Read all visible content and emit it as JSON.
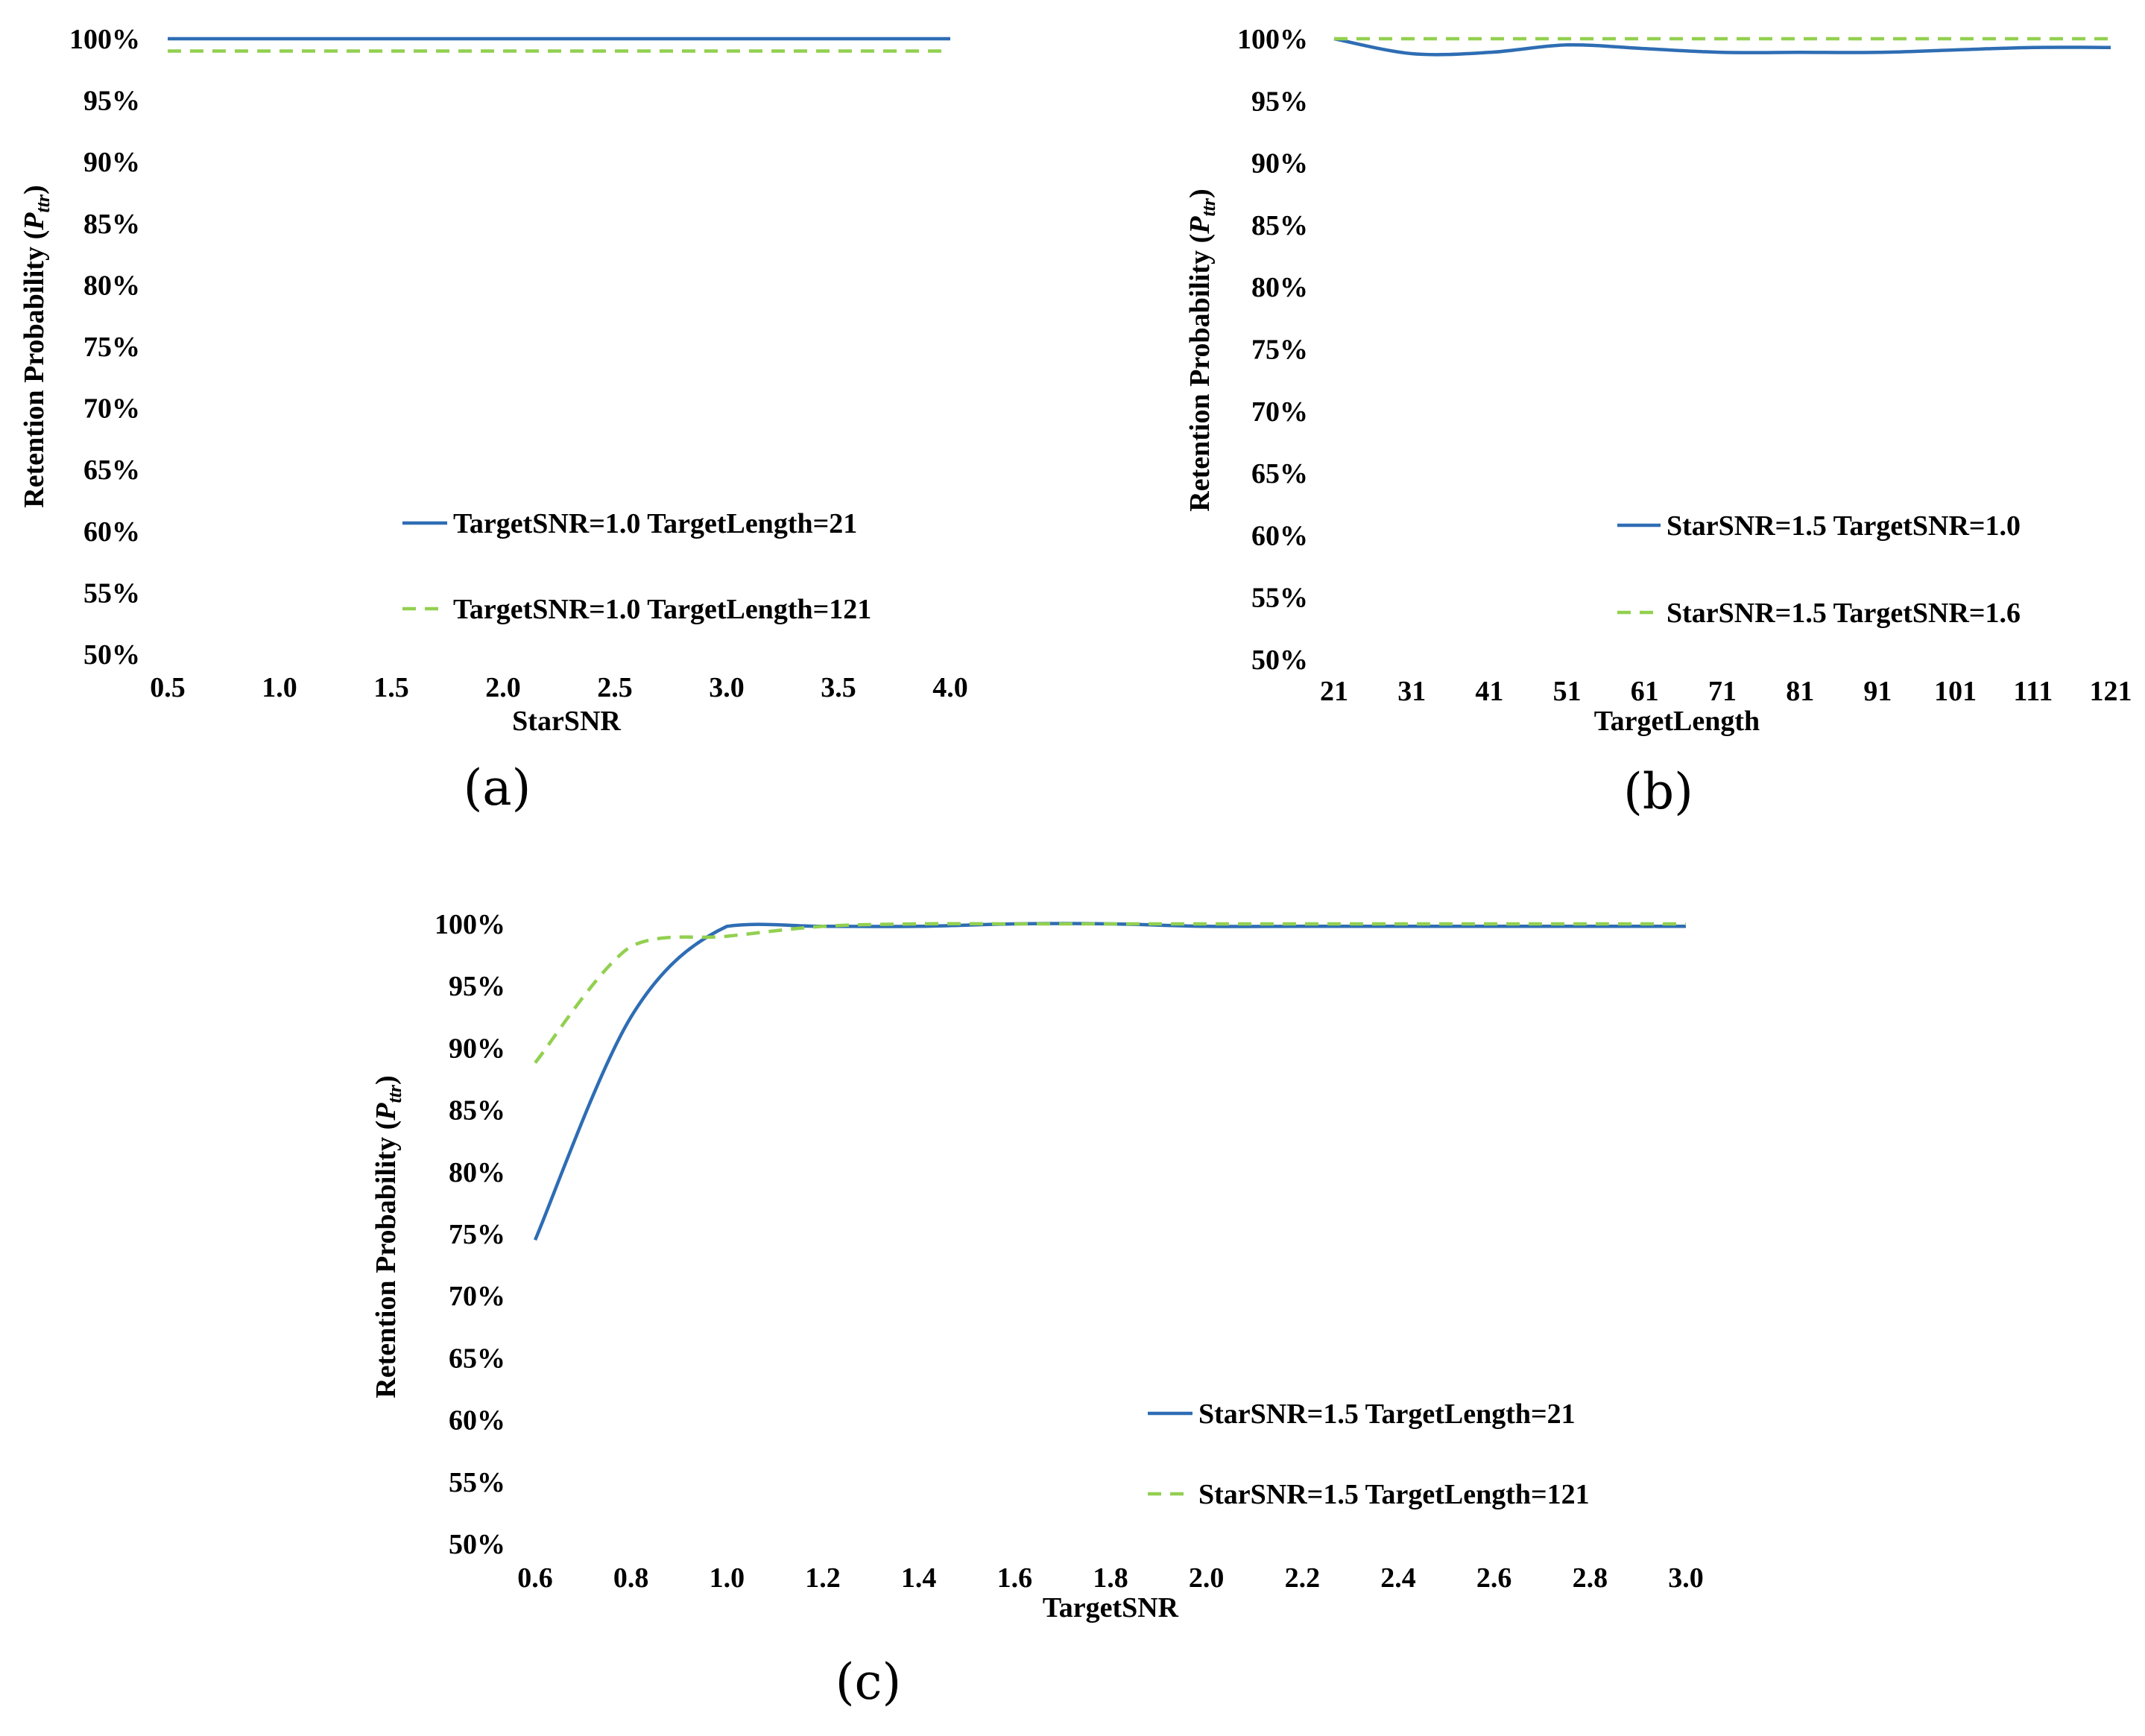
{
  "colors": {
    "series_solid": "#2E6DB4",
    "series_dashed": "#92D050"
  },
  "chart_data": [
    {
      "type": "line",
      "panel_label": "(a)",
      "xlabel": "StarSNR",
      "ylabel": "Retention Probability",
      "ylabel_symbol": "P",
      "ylabel_subscript": "ttr",
      "x_ticks": [
        "0.5",
        "1.0",
        "1.5",
        "2.0",
        "2.5",
        "3.0",
        "3.5",
        "4.0"
      ],
      "y_ticks": [
        "50%",
        "55%",
        "60%",
        "65%",
        "70%",
        "75%",
        "80%",
        "85%",
        "90%",
        "95%",
        "100%"
      ],
      "xlim": [
        0.5,
        4.0
      ],
      "ylim": [
        50,
        100
      ],
      "legend_position": "lower-right",
      "series": [
        {
          "name": "TargetSNR=1.0 TargetLength=21",
          "style": "solid",
          "x": [
            0.5,
            1.0,
            1.5,
            2.0,
            2.5,
            3.0,
            3.5,
            4.0
          ],
          "y": [
            100,
            100,
            100,
            100,
            100,
            100,
            100,
            100
          ]
        },
        {
          "name": "TargetSNR=1.0 TargetLength=121",
          "style": "dashed",
          "x": [
            0.5,
            1.0,
            1.5,
            2.0,
            2.5,
            3.0,
            3.5,
            4.0
          ],
          "y": [
            99,
            99,
            99,
            99,
            99,
            99,
            99,
            99
          ]
        }
      ]
    },
    {
      "type": "line",
      "panel_label": "(b)",
      "xlabel": "TargetLength",
      "ylabel": "Retention Probability",
      "ylabel_symbol": "P",
      "ylabel_subscript": "ttr",
      "x_ticks": [
        "21",
        "31",
        "41",
        "51",
        "61",
        "71",
        "81",
        "91",
        "101",
        "111",
        "121"
      ],
      "y_ticks": [
        "50%",
        "55%",
        "60%",
        "65%",
        "70%",
        "75%",
        "80%",
        "85%",
        "90%",
        "95%",
        "100%"
      ],
      "xlim": [
        21,
        121
      ],
      "ylim": [
        50,
        100
      ],
      "legend_position": "lower-right",
      "series": [
        {
          "name": "StarSNR=1.5 TargetSNR=1.0",
          "style": "solid",
          "x": [
            21,
            31,
            41,
            51,
            61,
            71,
            81,
            91,
            101,
            111,
            121
          ],
          "y": [
            100,
            98.8,
            98.9,
            99.5,
            99.2,
            98.9,
            98.9,
            98.9,
            99.1,
            99.3,
            99.3
          ]
        },
        {
          "name": "StarSNR=1.5 TargetSNR=1.6",
          "style": "dashed",
          "x": [
            21,
            31,
            41,
            51,
            61,
            71,
            81,
            91,
            101,
            111,
            121
          ],
          "y": [
            100,
            100,
            100,
            100,
            100,
            100,
            100,
            100,
            100,
            100,
            100
          ]
        }
      ]
    },
    {
      "type": "line",
      "panel_label": "(c)",
      "xlabel": "TargetSNR",
      "ylabel": "Retention Probability",
      "ylabel_symbol": "P",
      "ylabel_subscript": "ttr",
      "x_ticks": [
        "0.6",
        "0.8",
        "1.0",
        "1.2",
        "1.4",
        "1.6",
        "1.8",
        "2.0",
        "2.2",
        "2.4",
        "2.6",
        "2.8",
        "3.0"
      ],
      "y_ticks": [
        "50%",
        "55%",
        "60%",
        "65%",
        "70%",
        "75%",
        "80%",
        "85%",
        "90%",
        "95%",
        "100%"
      ],
      "xlim": [
        0.6,
        3.0
      ],
      "ylim": [
        50,
        100
      ],
      "legend_position": "lower-right",
      "series": [
        {
          "name": "StarSNR=1.5 TargetLength=21",
          "style": "solid",
          "x": [
            0.6,
            0.8,
            1.0,
            1.2,
            1.4,
            1.6,
            1.8,
            2.0,
            2.2,
            2.4,
            2.6,
            2.8,
            3.0
          ],
          "y": [
            74.5,
            92.5,
            99.8,
            99.8,
            99.8,
            100,
            100,
            99.8,
            99.8,
            99.8,
            99.8,
            99.8,
            99.8
          ]
        },
        {
          "name": "StarSNR=1.5 TargetLength=121",
          "style": "dashed",
          "x": [
            0.6,
            0.8,
            1.0,
            1.2,
            1.4,
            1.6,
            1.8,
            2.0,
            2.2,
            2.4,
            2.6,
            2.8,
            3.0
          ],
          "y": [
            88.8,
            98.2,
            99,
            99.8,
            100,
            100,
            100,
            100,
            100,
            100,
            100,
            100,
            100
          ]
        }
      ]
    }
  ]
}
